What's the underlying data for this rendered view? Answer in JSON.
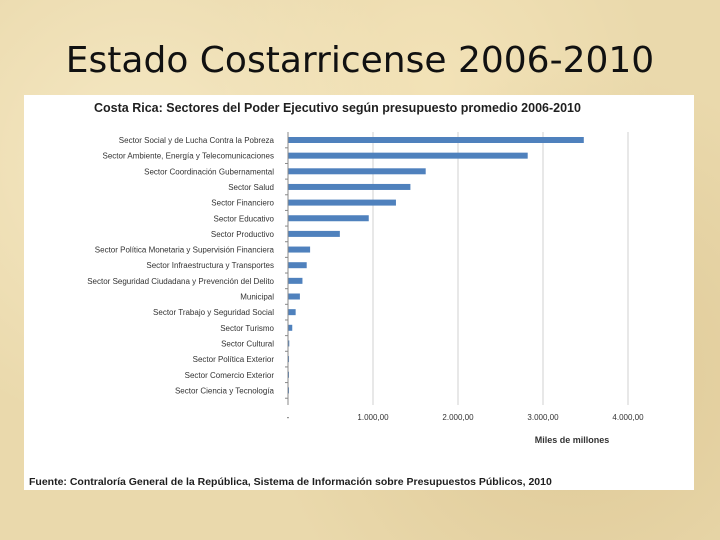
{
  "slide": {
    "title": "Estado Costarricense 2006-2010"
  },
  "chart_data": {
    "type": "bar",
    "orientation": "horizontal",
    "title": "Costa Rica: Sectores del Poder Ejecutivo según presupuesto promedio 2006-2010",
    "xlabel": "Miles de millones",
    "ylabel": "",
    "source": "Fuente: Contraloría General de la República, Sistema de Información sobre Presupuestos Públicos, 2010",
    "categories": [
      "Sector Social y de Lucha Contra la Pobreza",
      "Sector Ambiente, Energía y Telecomunicaciones",
      "Sector Coordinación Gubernamental",
      "Sector Salud",
      "Sector Financiero",
      "Sector Educativo",
      "Sector Productivo",
      "Sector Política Monetaria y Supervisión Financiera",
      "Sector Infraestructura y Transportes",
      "Sector Seguridad Ciudadana y Prevención del Delito",
      "Municipal",
      "Sector Trabajo y Seguridad Social",
      "Sector Turismo",
      "Sector Cultural",
      "Sector Política Exterior",
      "Sector Comercio Exterior",
      "Sector Ciencia y Tecnología"
    ],
    "values": [
      3480,
      2820,
      1620,
      1440,
      1270,
      950,
      610,
      260,
      220,
      170,
      140,
      90,
      50,
      15,
      12,
      8,
      5
    ],
    "xlim": [
      0,
      4000
    ],
    "x_ticks": [
      0,
      1000,
      2000,
      3000,
      4000
    ],
    "x_tick_labels": [
      "-",
      "1.000,00",
      "2.000,00",
      "3.000,00",
      "4.000,00"
    ],
    "grid": "vertical",
    "bar_color": "#4f81bd"
  }
}
